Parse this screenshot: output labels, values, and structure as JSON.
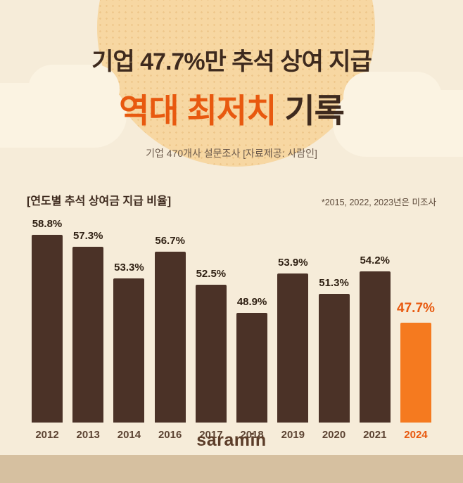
{
  "header": {
    "title_line1": "기업 47.7%만 추석 상여 지급",
    "title_line2_highlight": "역대 최저치",
    "title_line2_rest": " 기록",
    "subtitle": "기업 470개사 설문조사 [자료제공: 사람인]"
  },
  "section": {
    "title": "[연도별 추석 상여금 지급 비율]",
    "note": "*2015, 2022, 2023년은 미조사"
  },
  "chart_data": {
    "type": "bar",
    "title": "연도별 추석 상여금 지급 비율",
    "categories": [
      "2012",
      "2013",
      "2014",
      "2016",
      "2017",
      "2018",
      "2019",
      "2020",
      "2021",
      "2024"
    ],
    "values": [
      58.8,
      57.3,
      53.3,
      56.7,
      52.5,
      48.9,
      53.9,
      51.3,
      54.2,
      47.7
    ],
    "unit": "%",
    "highlight_index": 9,
    "ylim": [
      35,
      62
    ],
    "grid": false,
    "legend": "none",
    "note": "*2015, 2022, 2023년은 미조사",
    "colors": {
      "bar": "#4b3227",
      "highlight_bar": "#f57a1f",
      "value_label": "#2f2013",
      "highlight_label": "#e8590f"
    }
  },
  "theme": {
    "background": "#f6ecd9",
    "title_brown": "#3e2a1e",
    "accent_orange": "#e8590f",
    "footer_strip": "#d6c0a0",
    "circle_fill": "#f7d7a2"
  },
  "footer": {
    "brand": "saramin"
  }
}
